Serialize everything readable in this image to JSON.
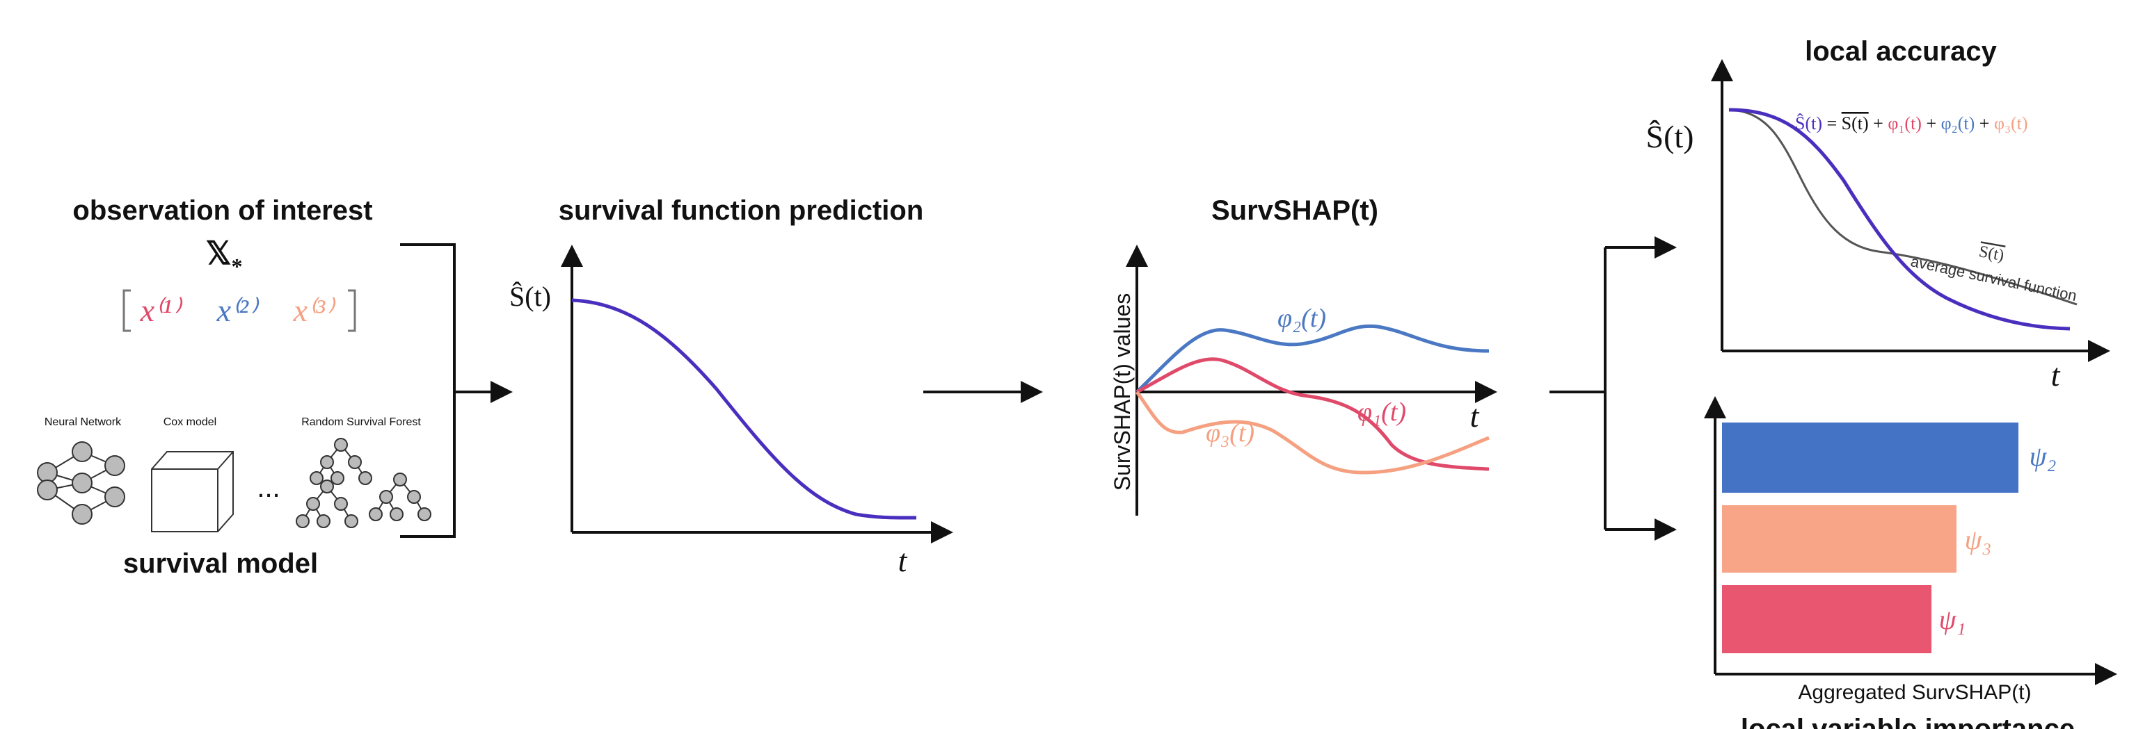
{
  "input": {
    "title": "observation of interest",
    "symbol": "𝕏",
    "symbol_subscript": "*",
    "features": [
      "x⁽¹⁾",
      "x⁽²⁾",
      "x⁽³⁾"
    ]
  },
  "model": {
    "models": [
      "Neural Network",
      "Cox model",
      "Random Survival Forest"
    ],
    "ellipsis": "...",
    "title": "survival model"
  },
  "prediction": {
    "title": "survival function prediction",
    "y_label": "Ŝ(t)",
    "x_label": "t"
  },
  "survshap": {
    "title": "SurvSHAP(t)",
    "y_label": "SurvSHAP(t) values",
    "x_label": "t",
    "curve_labels": [
      "φ₁(t)",
      "φ₂(t)",
      "φ₃(t)"
    ]
  },
  "local_accuracy": {
    "title": "local accuracy",
    "y_label": "Ŝ(t)",
    "x_label": "t",
    "equation": [
      "Ŝ(t)",
      " = ",
      "S(t)",
      " + ",
      "φ₁(t)",
      " + ",
      "φ₂(t)",
      " + ",
      "φ₃(t)"
    ],
    "average_symbol": "S(t)",
    "average_label": "average survival function"
  },
  "importance": {
    "bar_labels": [
      "ψ₂",
      "ψ₃",
      "ψ₁"
    ],
    "x_label": "Aggregated SurvSHAP(t)",
    "title": "local variable importance"
  }
}
